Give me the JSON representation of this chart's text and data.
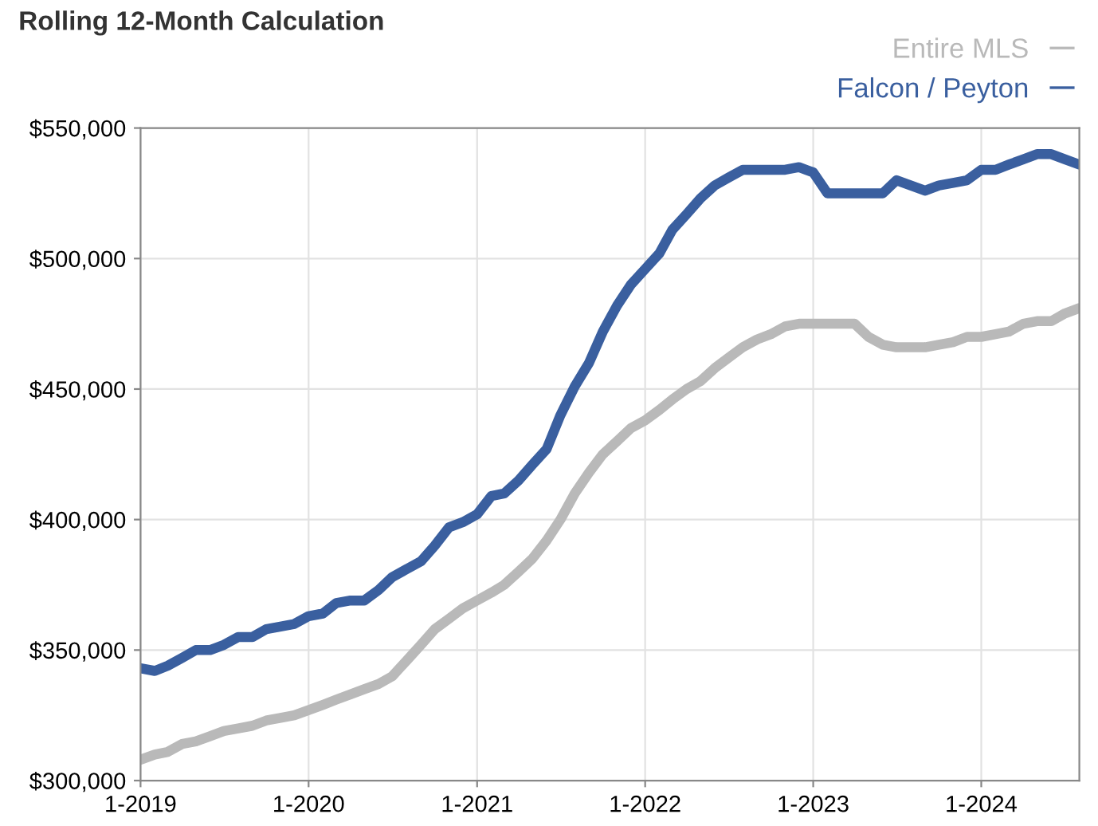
{
  "chart_data": {
    "type": "line",
    "title": "Rolling 12-Month Calculation",
    "x": [
      "2019-01",
      "2019-02",
      "2019-03",
      "2019-04",
      "2019-05",
      "2019-06",
      "2019-07",
      "2019-08",
      "2019-09",
      "2019-10",
      "2019-11",
      "2019-12",
      "2020-01",
      "2020-02",
      "2020-03",
      "2020-04",
      "2020-05",
      "2020-06",
      "2020-07",
      "2020-08",
      "2020-09",
      "2020-10",
      "2020-11",
      "2020-12",
      "2021-01",
      "2021-02",
      "2021-03",
      "2021-04",
      "2021-05",
      "2021-06",
      "2021-07",
      "2021-08",
      "2021-09",
      "2021-10",
      "2021-11",
      "2021-12",
      "2022-01",
      "2022-02",
      "2022-03",
      "2022-04",
      "2022-05",
      "2022-06",
      "2022-07",
      "2022-08",
      "2022-09",
      "2022-10",
      "2022-11",
      "2022-12",
      "2023-01",
      "2023-02",
      "2023-03",
      "2023-04",
      "2023-05",
      "2023-06",
      "2023-07",
      "2023-08",
      "2023-09",
      "2023-10",
      "2023-11",
      "2023-12",
      "2024-01",
      "2024-02",
      "2024-03",
      "2024-04",
      "2024-05",
      "2024-06",
      "2024-07",
      "2024-08"
    ],
    "series": [
      {
        "name": "Entire MLS",
        "color": "#b9b9b9",
        "values": [
          308000,
          310000,
          311000,
          314000,
          315000,
          317000,
          319000,
          320000,
          321000,
          323000,
          324000,
          325000,
          327000,
          329000,
          331000,
          333000,
          335000,
          337000,
          340000,
          346000,
          352000,
          358000,
          362000,
          366000,
          369000,
          372000,
          375000,
          380000,
          385000,
          392000,
          400000,
          410000,
          418000,
          425000,
          430000,
          435000,
          438000,
          442000,
          446000,
          450000,
          453000,
          458000,
          462000,
          466000,
          469000,
          471000,
          474000,
          475000,
          475000,
          475000,
          475000,
          475000,
          470000,
          467000,
          466000,
          466000,
          466000,
          467000,
          468000,
          470000,
          470000,
          471000,
          472000,
          475000,
          476000,
          476000,
          479000,
          481000
        ]
      },
      {
        "name": "Falcon / Peyton",
        "color": "#3a5f9f",
        "values": [
          343000,
          342000,
          344000,
          347000,
          350000,
          350000,
          352000,
          355000,
          355000,
          358000,
          359000,
          360000,
          363000,
          364000,
          368000,
          369000,
          369000,
          373000,
          378000,
          381000,
          384000,
          390000,
          397000,
          399000,
          402000,
          409000,
          410000,
          415000,
          421000,
          427000,
          440000,
          451000,
          460000,
          472000,
          482000,
          490000,
          496000,
          502000,
          511000,
          517000,
          523000,
          528000,
          531000,
          534000,
          534000,
          534000,
          534000,
          535000,
          533000,
          525000,
          525000,
          525000,
          525000,
          525000,
          530000,
          528000,
          526000,
          528000,
          529000,
          530000,
          534000,
          534000,
          536000,
          538000,
          540000,
          540000,
          538000,
          536000
        ]
      }
    ],
    "xlim": [
      "2019-01",
      "2024-08"
    ],
    "xticks": [
      {
        "value": "2019-01",
        "label": "1-2019"
      },
      {
        "value": "2020-01",
        "label": "1-2020"
      },
      {
        "value": "2021-01",
        "label": "1-2021"
      },
      {
        "value": "2022-01",
        "label": "1-2022"
      },
      {
        "value": "2023-01",
        "label": "1-2023"
      },
      {
        "value": "2024-01",
        "label": "1-2024"
      }
    ],
    "ylim": [
      300000,
      550000
    ],
    "yticks": [
      {
        "value": 300000,
        "label": "$300,000"
      },
      {
        "value": 350000,
        "label": "$350,000"
      },
      {
        "value": 400000,
        "label": "$400,000"
      },
      {
        "value": 450000,
        "label": "$450,000"
      },
      {
        "value": 500000,
        "label": "$500,000"
      },
      {
        "value": 550000,
        "label": "$550,000"
      }
    ],
    "grid": true,
    "legend": "top right",
    "marker": "none",
    "line_style": "solid"
  }
}
